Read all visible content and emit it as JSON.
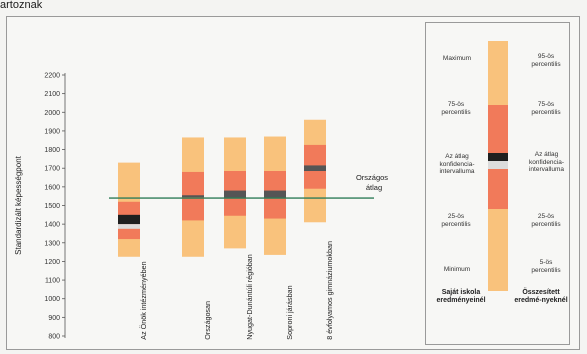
{
  "page": {
    "caption": "artoznak"
  },
  "chart_data": {
    "type": "box",
    "ylabel": "Standardizált képességpont",
    "ylim": [
      800,
      2200
    ],
    "yticks": [
      800,
      900,
      1000,
      1100,
      1200,
      1300,
      1400,
      1500,
      1600,
      1700,
      1800,
      1900,
      2000,
      2100,
      2200
    ],
    "categories": [
      "Az Önök intézményében",
      "Országosan",
      "Nyugat-Dunántúli régióban",
      "Soproni járásban",
      "8 évfolyamos gimnáziumokban"
    ],
    "series": [
      {
        "p5": 1225,
        "p25": 1320,
        "ci_low": 1375,
        "mean": 1400,
        "ci_high": 1450,
        "p75": 1520,
        "p95": 1730
      },
      {
        "p5": 1225,
        "p25": 1420,
        "ci_low": 1545,
        "mean": 1550,
        "ci_high": 1555,
        "p75": 1680,
        "p95": 1865
      },
      {
        "p5": 1270,
        "p25": 1445,
        "ci_low": 1540,
        "mean": 1560,
        "ci_high": 1580,
        "p75": 1685,
        "p95": 1865
      },
      {
        "p5": 1235,
        "p25": 1430,
        "ci_low": 1540,
        "mean": 1560,
        "ci_high": 1580,
        "p75": 1685,
        "p95": 1870
      },
      {
        "p5": 1410,
        "p25": 1590,
        "ci_low": 1685,
        "mean": 1700,
        "ci_high": 1715,
        "p75": 1825,
        "p95": 1960
      }
    ],
    "reference_line": {
      "value": 1540,
      "label": "Országos átlag"
    },
    "colors": {
      "outer": "#f9c27c",
      "inner": "#f17a5a",
      "mean_dark": "#1f1f1f",
      "mean_light": "#dcdcdc",
      "line": "#2e7d58"
    },
    "legend": {
      "left_labels": [
        "Maximum",
        "75-ös percentilis",
        "Az átlag konfidencia-intervalluma",
        "25-ös percentilis",
        "Minimum"
      ],
      "right_labels": [
        "95-ös percentilis",
        "75-ös percentilis",
        "Az átlag konfidencia-intervalluma",
        "25-ös percentilis",
        "5-ös percentilis"
      ],
      "left_footer": "Saját iskola eredményeinél",
      "right_footer": "Összesített eredmé-nyeknél"
    }
  }
}
